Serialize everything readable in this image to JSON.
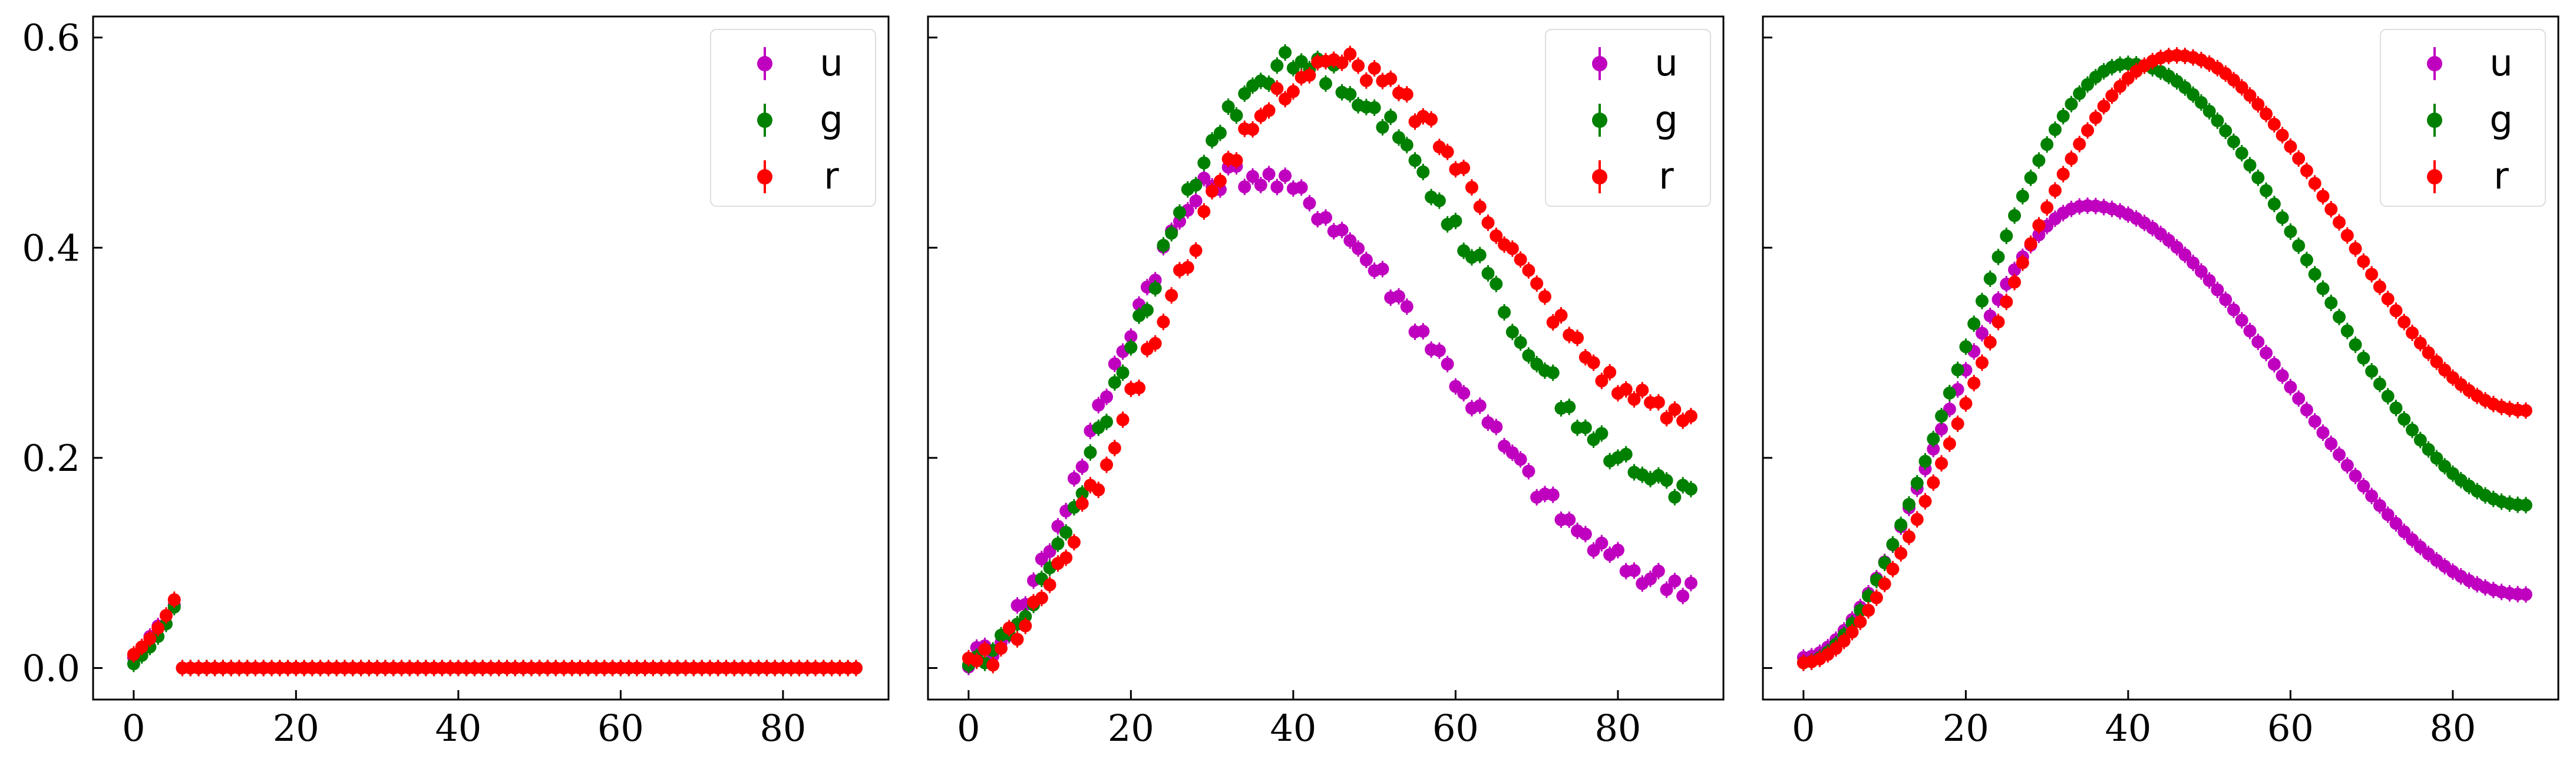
{
  "chart_data": [
    {
      "type": "scatter",
      "xlim": [
        -5,
        93
      ],
      "ylim": [
        -0.03,
        0.62
      ],
      "xticks": [
        0,
        20,
        40,
        60,
        80
      ],
      "yticks": [
        0.0,
        0.2,
        0.4,
        0.6
      ],
      "ytick_labels": [
        "0.0",
        "0.2",
        "0.4",
        "0.6"
      ],
      "show_ytick_labels": true,
      "legend": {
        "position": "top-right",
        "entries": [
          "u",
          "g",
          "r"
        ]
      },
      "grid": false,
      "series": [
        {
          "name": "u",
          "color": "#bf00bf",
          "model": "first6",
          "values": [
            0.01,
            0.02,
            0.03,
            0.04,
            0.05,
            0.06
          ]
        },
        {
          "name": "g",
          "color": "#008000",
          "model": "first6",
          "values": [
            0.004,
            0.012,
            0.02,
            0.03,
            0.042,
            0.058
          ]
        },
        {
          "name": "r",
          "color": "#ff0000",
          "model": "first6",
          "values": [
            0.013,
            0.02,
            0.028,
            0.038,
            0.05,
            0.065
          ]
        }
      ],
      "x_range": [
        0,
        89
      ],
      "x_note": "",
      "flat_value_after_x5": 0.0
    },
    {
      "type": "scatter",
      "xlim": [
        -5,
        93
      ],
      "ylim": [
        -0.03,
        0.62
      ],
      "xticks": [
        0,
        20,
        40,
        60,
        80
      ],
      "yticks": [
        0.0,
        0.2,
        0.4,
        0.6
      ],
      "ytick_labels": [
        "",
        "",
        "",
        ""
      ],
      "show_ytick_labels": false,
      "legend": {
        "position": "top-right",
        "entries": [
          "u",
          "g",
          "r"
        ]
      },
      "grid": false,
      "series": [
        {
          "name": "u",
          "color": "#bf00bf",
          "peak_x": 33,
          "peak_y": 0.47,
          "start_y": 0.01,
          "end_y": 0.08,
          "noise": 0.012
        },
        {
          "name": "g",
          "color": "#008000",
          "peak_x": 40,
          "peak_y": 0.575,
          "start_y": 0.005,
          "end_y": 0.17,
          "noise": 0.012
        },
        {
          "name": "r",
          "color": "#ff0000",
          "peak_x": 45,
          "peak_y": 0.575,
          "start_y": 0.005,
          "end_y": 0.24,
          "noise": 0.012
        }
      ],
      "x_range": [
        0,
        89
      ]
    },
    {
      "type": "scatter",
      "xlim": [
        -5,
        93
      ],
      "ylim": [
        -0.03,
        0.62
      ],
      "xticks": [
        0,
        20,
        40,
        60,
        80
      ],
      "yticks": [
        0.0,
        0.2,
        0.4,
        0.6
      ],
      "ytick_labels": [
        "",
        "",
        "",
        ""
      ],
      "show_ytick_labels": false,
      "legend": {
        "position": "top-right",
        "entries": [
          "u",
          "g",
          "r"
        ]
      },
      "grid": false,
      "series": [
        {
          "name": "u",
          "color": "#bf00bf",
          "peak_x": 35,
          "peak_y": 0.44,
          "start_y": 0.01,
          "end_y": 0.07,
          "noise": 0.0
        },
        {
          "name": "g",
          "color": "#008000",
          "peak_x": 40,
          "peak_y": 0.575,
          "start_y": 0.005,
          "end_y": 0.155,
          "noise": 0.0
        },
        {
          "name": "r",
          "color": "#ff0000",
          "peak_x": 46,
          "peak_y": 0.583,
          "start_y": 0.005,
          "end_y": 0.245,
          "noise": 0.0
        }
      ],
      "x_range": [
        0,
        89
      ]
    }
  ]
}
